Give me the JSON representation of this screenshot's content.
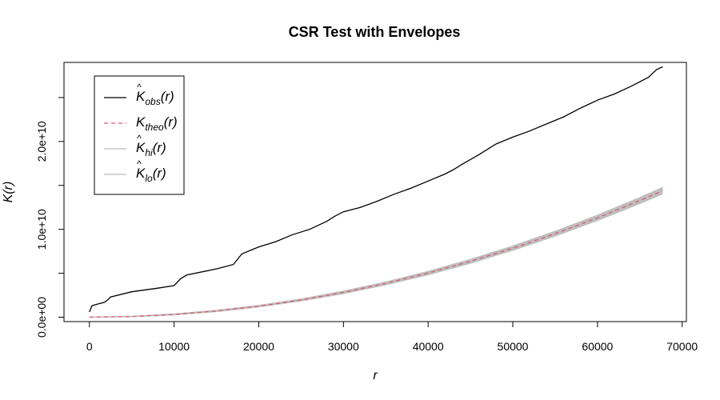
{
  "chart_data": {
    "type": "line",
    "title": "CSR Test with Envelopes",
    "xlabel": "r",
    "ylabel": "K(r)",
    "xlim": [
      -3000,
      70500
    ],
    "ylim": [
      -500000000,
      29000000000
    ],
    "xticks": [
      0,
      10000,
      20000,
      30000,
      40000,
      50000,
      60000,
      70000
    ],
    "xtick_labels": [
      "0",
      "10000",
      "20000",
      "30000",
      "40000",
      "50000",
      "60000",
      "70000"
    ],
    "yticks": [
      0,
      5000000000,
      10000000000,
      15000000000,
      20000000000,
      25000000000
    ],
    "ytick_labels": [
      "0.0e+00",
      "",
      "1.0e+10",
      "",
      "2.0e+10",
      ""
    ],
    "grid": false,
    "legend_position": "top-left",
    "legend": [
      {
        "base": "K",
        "hat": "^",
        "sub": "obs",
        "arg": "(r)",
        "color": "#000000",
        "dash": "none"
      },
      {
        "base": "K",
        "hat": "",
        "sub": "theo",
        "arg": "(r)",
        "color": "#DF536B",
        "dash": "5,4"
      },
      {
        "base": "K",
        "hat": "^",
        "sub": "hi",
        "arg": "(r)",
        "color": "#BEBEBE",
        "dash": "none"
      },
      {
        "base": "K",
        "hat": "^",
        "sub": "lo",
        "arg": "(r)",
        "color": "#BEBEBE",
        "dash": "none"
      }
    ],
    "envelope_color": "#BEBEBE",
    "series": [
      {
        "name": "obs",
        "color": "#000000",
        "x": [
          0,
          300,
          1000,
          1800,
          2200,
          2500,
          5000,
          8000,
          10000,
          10800,
          11500,
          15000,
          17000,
          17500,
          18000,
          19000,
          20000,
          22000,
          24000,
          26000,
          28000,
          29000,
          30000,
          32000,
          34000,
          36000,
          38000,
          40000,
          42000,
          43000,
          44000,
          46000,
          48000,
          50000,
          52000,
          54000,
          56000,
          58000,
          60000,
          62000,
          64000,
          66000,
          67000,
          67700
        ],
        "y": [
          600000000,
          1300000000,
          1500000000,
          1700000000,
          2000000000,
          2300000000,
          2900000000,
          3300000000,
          3600000000,
          4400000000,
          4800000000,
          5500000000,
          6000000000,
          6600000000,
          7200000000,
          7600000000,
          8000000000,
          8600000000,
          9400000000,
          10000000000,
          10900000000,
          11500000000,
          12000000000,
          12500000000,
          13200000000,
          14000000000,
          14700000000,
          15500000000,
          16300000000,
          16800000000,
          17400000000,
          18500000000,
          19700000000,
          20500000000,
          21200000000,
          22000000000,
          22800000000,
          23800000000,
          24700000000,
          25400000000,
          26300000000,
          27300000000,
          28200000000,
          28500000000
        ]
      },
      {
        "name": "theo",
        "color": "#DF536B",
        "x": [
          0,
          5000,
          10000,
          15000,
          20000,
          25000,
          30000,
          35000,
          40000,
          45000,
          50000,
          55000,
          60000,
          65000,
          67700
        ],
        "y": [
          0,
          78500000,
          314000000,
          707000000,
          1257000000,
          1963000000,
          2827000000,
          3848000000,
          5027000000,
          6362000000,
          7854000000,
          9503000000,
          11310000000,
          13273000000,
          14400000000
        ]
      },
      {
        "name": "hi",
        "color": "#BEBEBE",
        "x": [
          0,
          5000,
          10000,
          15000,
          20000,
          25000,
          30000,
          35000,
          40000,
          45000,
          50000,
          55000,
          60000,
          65000,
          67700
        ],
        "y": [
          20000000,
          110000000,
          370000000,
          780000000,
          1350000000,
          2080000000,
          2970000000,
          4010000000,
          5220000000,
          6580000000,
          8100000000,
          9780000000,
          11620000000,
          13620000000,
          14780000000
        ]
      },
      {
        "name": "lo",
        "color": "#BEBEBE",
        "x": [
          0,
          5000,
          10000,
          15000,
          20000,
          25000,
          30000,
          35000,
          40000,
          45000,
          50000,
          55000,
          60000,
          65000,
          67700
        ],
        "y": [
          0,
          55000000,
          265000000,
          640000000,
          1170000000,
          1850000000,
          2690000000,
          3690000000,
          4840000000,
          6150000000,
          7610000000,
          9230000000,
          11010000000,
          12940000000,
          14040000000
        ]
      }
    ]
  }
}
